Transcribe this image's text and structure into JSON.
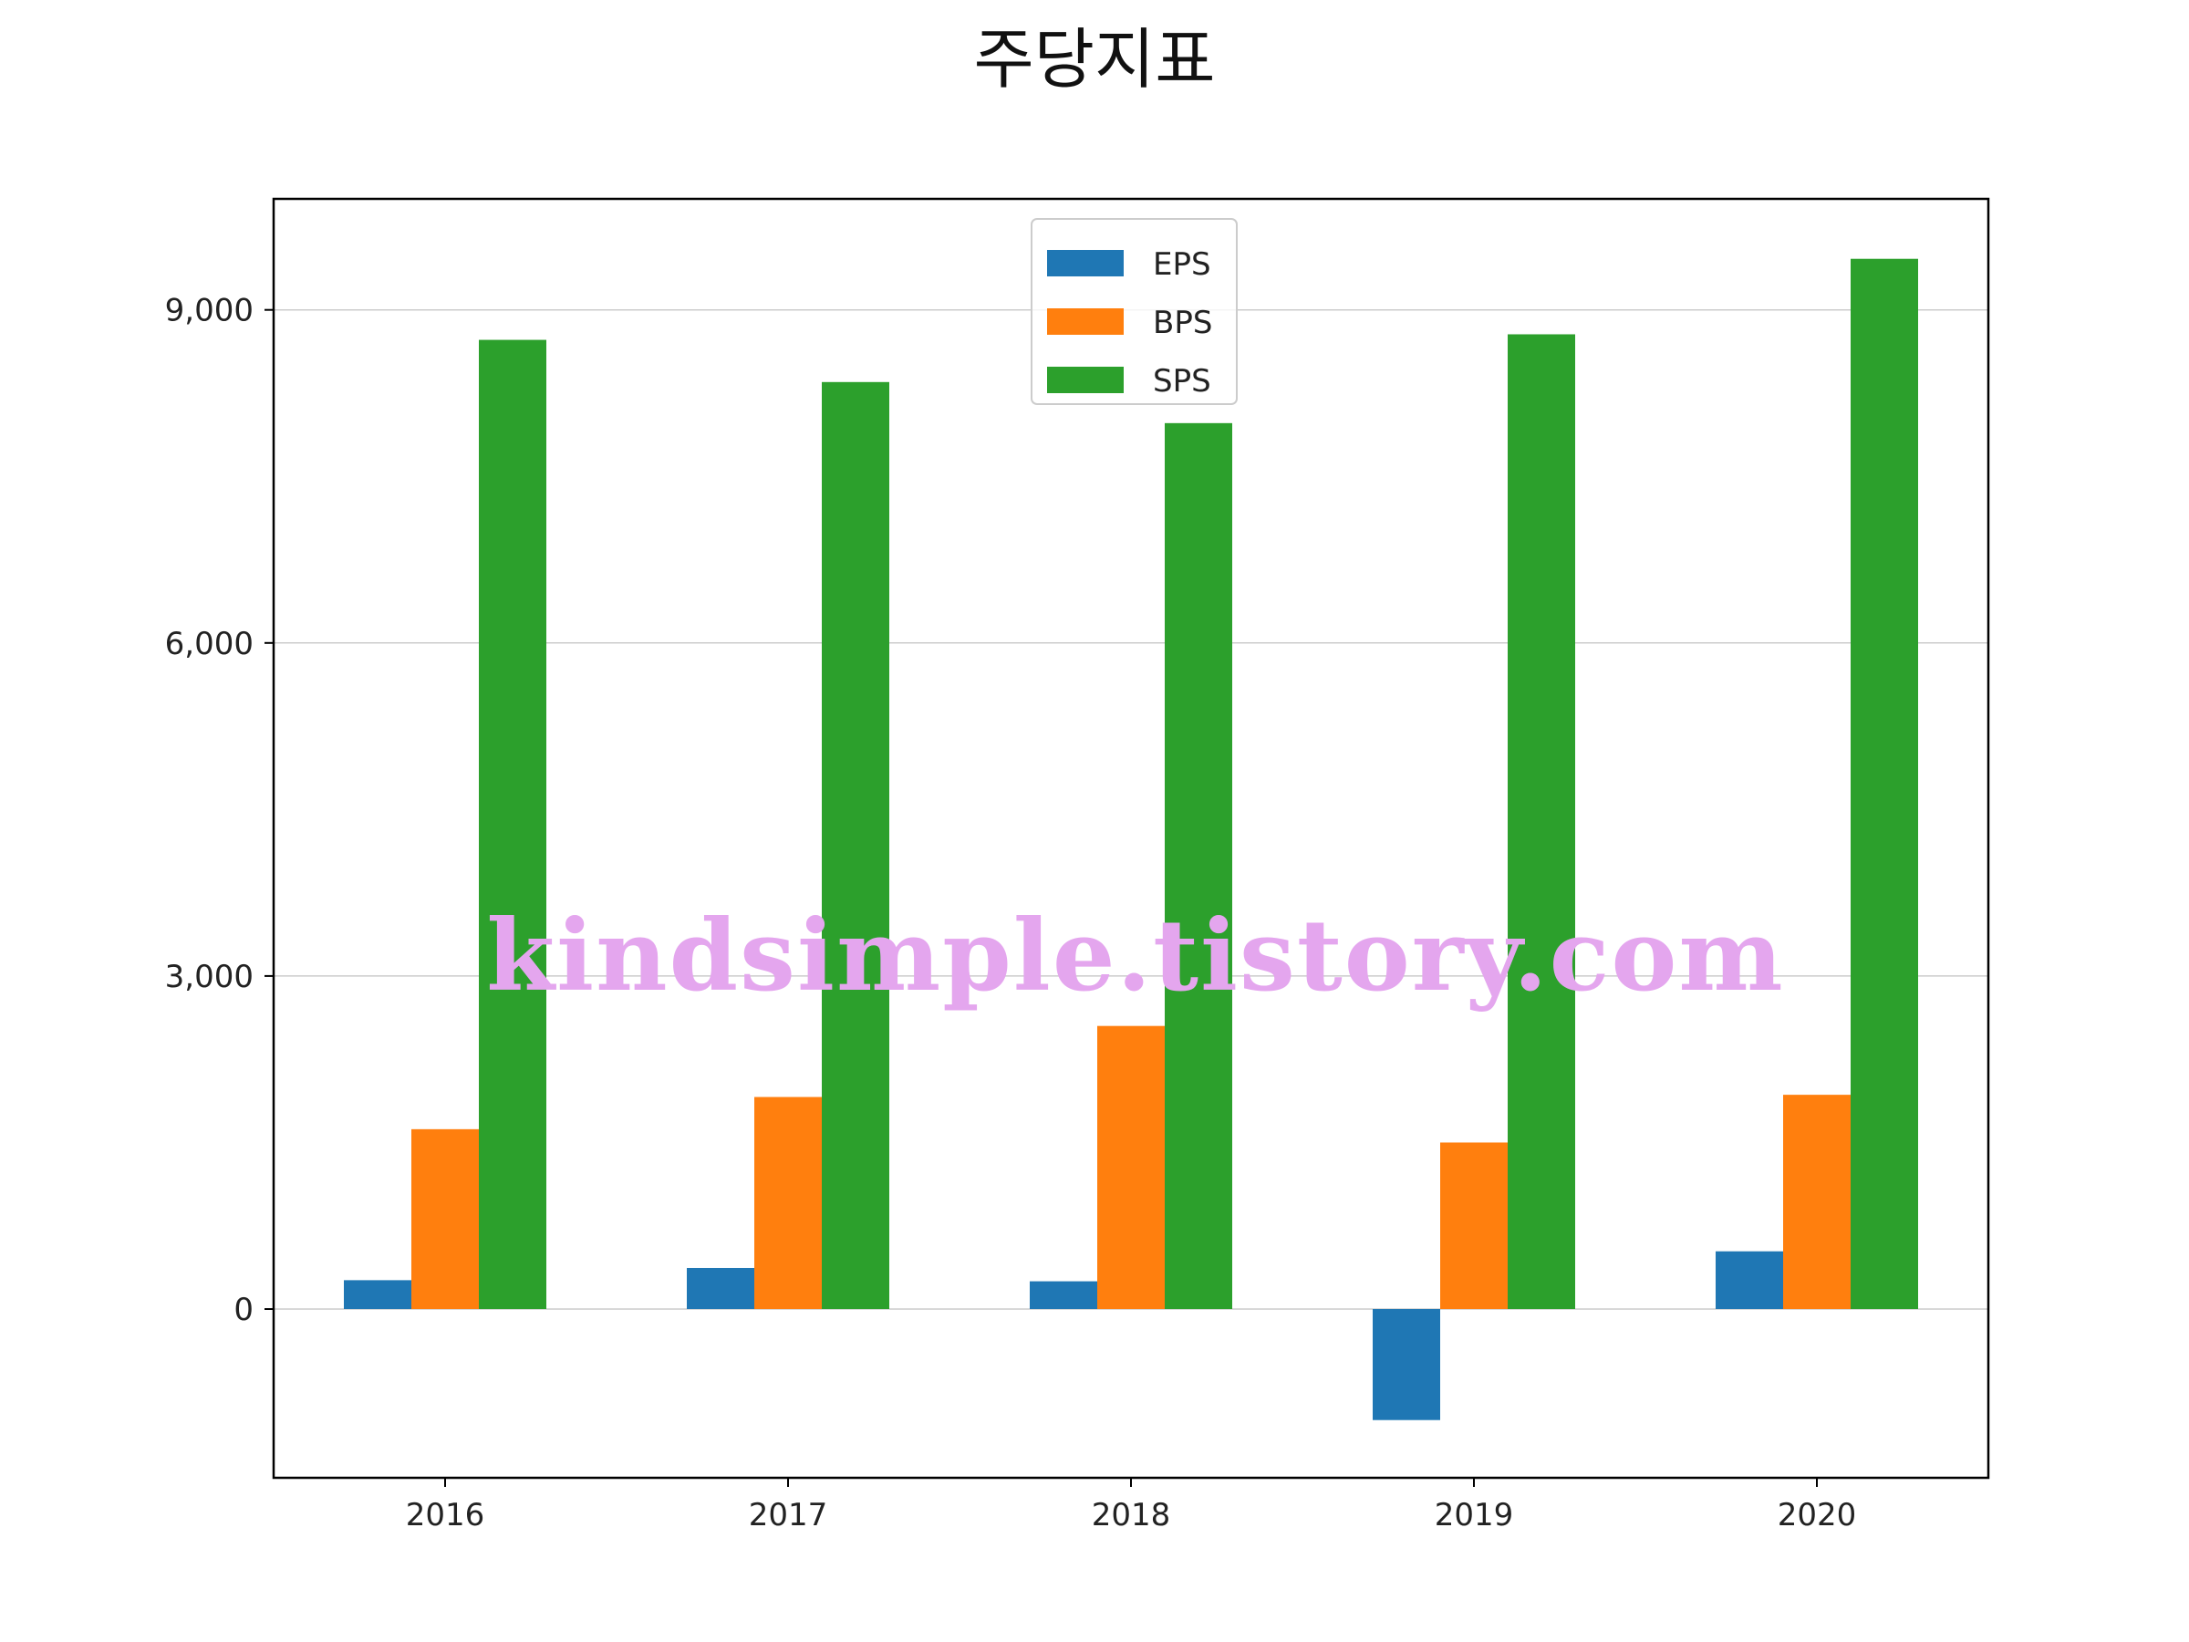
{
  "chart_data": {
    "type": "bar",
    "title": "주당지표",
    "xlabel": "",
    "ylabel": "",
    "categories": [
      "2016",
      "2017",
      "2018",
      "2019",
      "2020"
    ],
    "series": [
      {
        "name": "EPS",
        "color": "#1f77b4",
        "values": [
          260,
          370,
          250,
          -1000,
          520
        ]
      },
      {
        "name": "BPS",
        "color": "#ff7f0e",
        "values": [
          1620,
          1910,
          2550,
          1500,
          1930
        ]
      },
      {
        "name": "SPS",
        "color": "#2ca02c",
        "values": [
          8730,
          8350,
          7980,
          8780,
          9460
        ]
      }
    ],
    "ylim": [
      -1520,
      10000
    ],
    "yticks": [
      0,
      3000,
      6000,
      9000
    ],
    "ytick_labels": [
      "0",
      "3,000",
      "6,000",
      "9,000"
    ],
    "grid": {
      "y": true,
      "x": false
    },
    "legend_position": "top-center",
    "watermark": "kindsimple.tistory.com"
  }
}
